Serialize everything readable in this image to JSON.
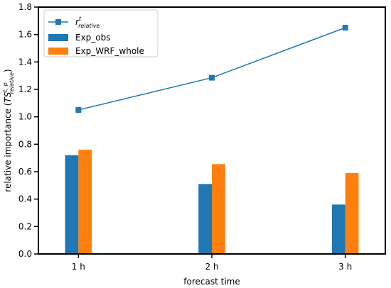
{
  "chart_data": {
    "type": "bar",
    "categories": [
      "1 h",
      "2 h",
      "3 h"
    ],
    "x": [
      1,
      2,
      3
    ],
    "xlabel": "forecast time",
    "ylabel_main": "relative importance (",
    "ylabel_ts": "TS",
    "ylabel_sup": "t, p",
    "ylabel_sub": "relative",
    "ylabel_close": ")",
    "ylim": [
      0.0,
      1.8
    ],
    "yticks": [
      0.0,
      0.2,
      0.4,
      0.6,
      0.8,
      1.0,
      1.2,
      1.4,
      1.6,
      1.8
    ],
    "ytick_labels": [
      "0.0",
      "0.2",
      "0.4",
      "0.6",
      "0.8",
      "1.0",
      "1.2",
      "1.4",
      "1.6",
      "1.8"
    ],
    "grid": false,
    "legend_position": "top-left",
    "line_series": {
      "name_base": "r",
      "name_sup": "t",
      "name_sub": "relative",
      "values": [
        1.05,
        1.285,
        1.65
      ],
      "color": "#1f77b4",
      "marker": "square"
    },
    "bar_series": [
      {
        "name": "Exp_obs",
        "values": [
          0.72,
          0.51,
          0.36
        ],
        "color": "#1f77b4"
      },
      {
        "name": "Exp_WRF_whole",
        "values": [
          0.76,
          0.655,
          0.59
        ],
        "color": "#ff7f0e"
      }
    ]
  }
}
